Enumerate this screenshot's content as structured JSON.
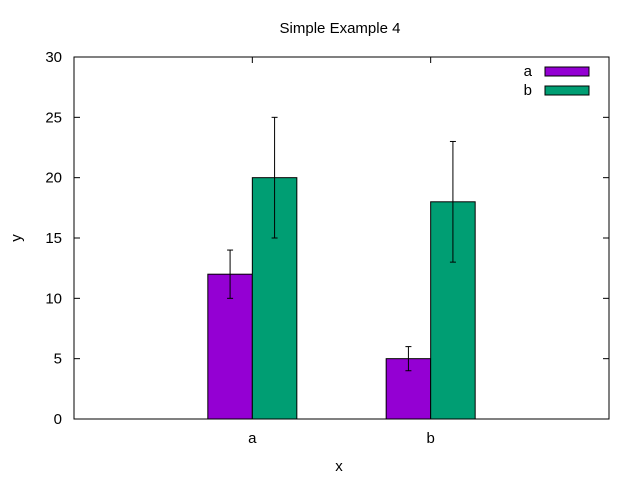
{
  "chart_data": {
    "type": "bar",
    "title": "Simple Example 4",
    "xlabel": "x",
    "ylabel": "y",
    "categories": [
      "a",
      "b"
    ],
    "ylim": [
      0,
      30
    ],
    "yticks": [
      0,
      5,
      10,
      15,
      20,
      25,
      30
    ],
    "grid": false,
    "legend_position": "top-right",
    "series": [
      {
        "name": "a",
        "color": "#9400d3",
        "values": [
          12,
          5
        ],
        "err_low": [
          10,
          4
        ],
        "err_high": [
          14,
          6
        ]
      },
      {
        "name": "b",
        "color": "#009e73",
        "values": [
          20,
          18
        ],
        "err_low": [
          15,
          13
        ],
        "err_high": [
          25,
          23
        ]
      }
    ]
  }
}
